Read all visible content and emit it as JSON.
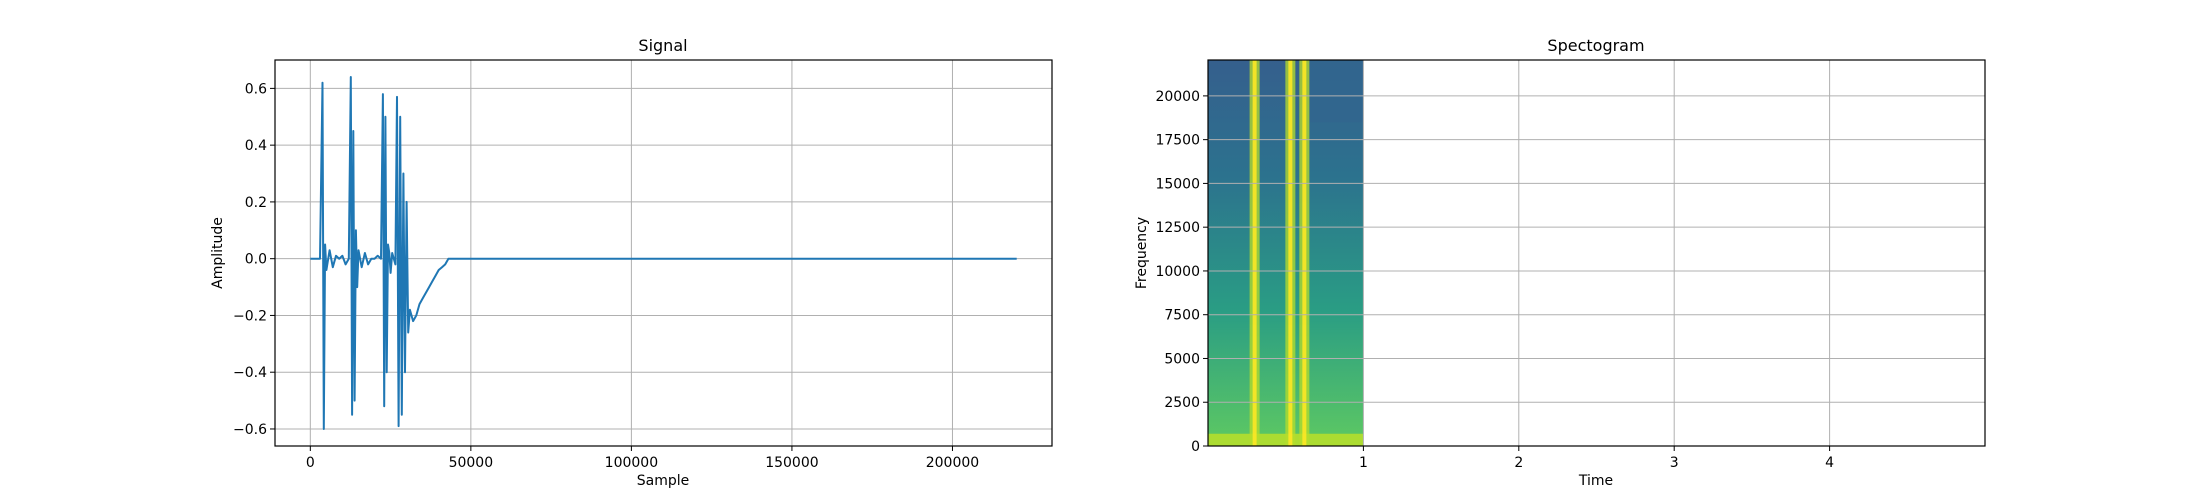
{
  "chart_data": [
    {
      "type": "line",
      "title": "Signal",
      "xlabel": "Sample",
      "ylabel": "Amplitude",
      "xlim": [
        -11000,
        231000
      ],
      "ylim": [
        -0.66,
        0.7
      ],
      "xticks": [
        0,
        50000,
        100000,
        150000,
        200000
      ],
      "xtick_labels": [
        "0",
        "50000",
        "100000",
        "150000",
        "200000"
      ],
      "yticks": [
        -0.6,
        -0.4,
        -0.2,
        0.0,
        0.2,
        0.4,
        0.6
      ],
      "ytick_labels": [
        "−0.6",
        "−0.4",
        "−0.2",
        "0.0",
        "0.2",
        "0.4",
        "0.6"
      ],
      "grid": true,
      "color": "#1f77b4",
      "series": [
        {
          "x": [
            0,
            3000,
            3800,
            4200,
            4600,
            5000,
            6000,
            7000,
            8000,
            9000,
            10000,
            11000,
            12000,
            12600,
            13000,
            13400,
            13800,
            14200,
            14600,
            15000,
            16000,
            17000,
            18000,
            19000,
            20000,
            21000,
            22000,
            22600,
            23000,
            23400,
            23800,
            24200,
            24600,
            25000,
            25500,
            26000,
            26500,
            27000,
            27500,
            28000,
            28500,
            29000,
            29500,
            30000,
            30500,
            31000,
            32000,
            33000,
            34000,
            35000,
            36000,
            37000,
            38000,
            39000,
            40000,
            41000,
            42000,
            43000,
            44000,
            220000
          ],
          "y": [
            0.0,
            0.0,
            0.62,
            -0.6,
            0.05,
            -0.04,
            0.03,
            -0.03,
            0.01,
            0.0,
            0.01,
            -0.02,
            0.0,
            0.64,
            -0.55,
            0.45,
            -0.5,
            0.1,
            -0.1,
            0.03,
            -0.03,
            0.02,
            -0.02,
            0.0,
            0.0,
            0.01,
            0.0,
            0.58,
            -0.52,
            0.5,
            -0.4,
            0.05,
            0.02,
            -0.05,
            0.02,
            0.0,
            -0.02,
            0.57,
            -0.59,
            0.5,
            -0.55,
            0.3,
            -0.4,
            0.2,
            -0.26,
            -0.18,
            -0.22,
            -0.2,
            -0.16,
            -0.14,
            -0.12,
            -0.1,
            -0.08,
            -0.06,
            -0.04,
            -0.03,
            -0.02,
            0.0,
            0.0,
            0.0
          ]
        }
      ]
    },
    {
      "type": "heatmap",
      "title": "Spectogram",
      "xlabel": "Time",
      "ylabel": "Frequency",
      "xlim": [
        0,
        5
      ],
      "ylim": [
        0,
        22050
      ],
      "xticks": [
        1,
        2,
        3,
        4
      ],
      "xtick_labels": [
        "1",
        "2",
        "3",
        "4"
      ],
      "yticks": [
        0,
        2500,
        5000,
        7500,
        10000,
        12500,
        15000,
        17500,
        20000
      ],
      "ytick_labels": [
        "0",
        "2500",
        "5000",
        "7500",
        "10000",
        "12500",
        "15000",
        "17500",
        "20000"
      ],
      "grid": true,
      "data_extent_time": [
        0,
        1
      ],
      "colormap": "viridis",
      "bright_time_bands": [
        0.3,
        0.53,
        0.62
      ],
      "colors": {
        "low": "#31668e",
        "mid": "#21918c",
        "high": "#b5de2b",
        "peak": "#fde725"
      }
    }
  ]
}
